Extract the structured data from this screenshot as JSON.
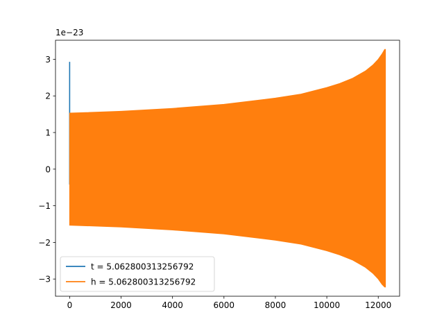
{
  "chart_data": {
    "type": "line",
    "title": "",
    "xlabel": "",
    "ylabel": "",
    "offset_text": "1e−23",
    "xlim": [
      -550,
      12830
    ],
    "ylim": [
      -3.47,
      3.52
    ],
    "x_ticks": [
      0,
      2000,
      4000,
      6000,
      8000,
      10000,
      12000
    ],
    "x_tick_labels": [
      "0",
      "2000",
      "4000",
      "6000",
      "8000",
      "10000",
      "12000"
    ],
    "y_ticks": [
      -3,
      -2,
      -1,
      0,
      1,
      2,
      3
    ],
    "y_tick_labels": [
      "−3",
      "−2",
      "−1",
      "0",
      "1",
      "2",
      "3"
    ],
    "grid": false,
    "legend_position": "lower-left",
    "series": [
      {
        "name": "t = 5.062800313256792",
        "color": "#1f77b4",
        "description_points": [
          [
            0,
            -0.42
          ],
          [
            0,
            2.93
          ],
          [
            0,
            1.5
          ]
        ]
      },
      {
        "name": "h = 5.062800313256792",
        "color": "#ff7f0e",
        "envelope": {
          "x": [
            0,
            2000,
            4000,
            6000,
            8000,
            9000,
            10000,
            10500,
            11000,
            11500,
            11800,
            12000,
            12150,
            12250,
            12280
          ],
          "upper": [
            1.53,
            1.58,
            1.66,
            1.77,
            1.94,
            2.05,
            2.23,
            2.34,
            2.48,
            2.68,
            2.85,
            3.0,
            3.15,
            3.27,
            3.27
          ],
          "lower": [
            -1.53,
            -1.58,
            -1.66,
            -1.77,
            -1.94,
            -2.05,
            -2.23,
            -2.34,
            -2.48,
            -2.68,
            -2.85,
            -3.0,
            -3.15,
            -3.22,
            -3.22
          ]
        }
      }
    ]
  }
}
